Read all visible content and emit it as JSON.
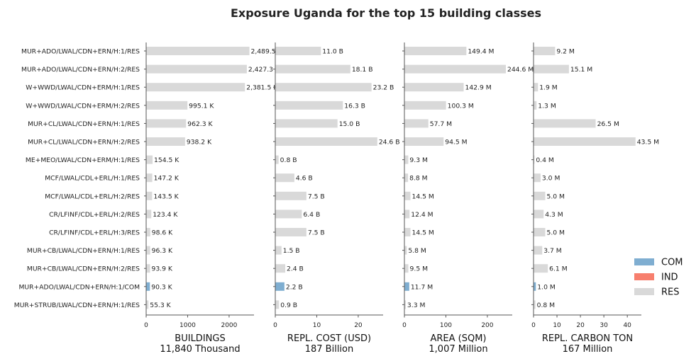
{
  "title": "Exposure Uganda for the top 15 building classes",
  "colors": {
    "COM": "#7faed1",
    "IND": "#f77f6e",
    "RES": "#d9d9d9"
  },
  "legend": {
    "placement": "right",
    "entries": [
      {
        "label": "COM",
        "color": "#7faed1"
      },
      {
        "label": "IND",
        "color": "#f77f6e"
      },
      {
        "label": "RES",
        "color": "#d9d9d9"
      }
    ]
  },
  "chart_data": {
    "type": "bar",
    "orientation": "horizontal",
    "grid": false,
    "categories": [
      "MUR+ADO/LWAL/CDN+ERN/H:1/RES",
      "MUR+ADO/LWAL/CDN+ERN/H:2/RES",
      "W+WWD/LWAL/CDN+ERM/H:1/RES",
      "W+WWD/LWAL/CDN+ERM/H:2/RES",
      "MUR+CL/LWAL/CDN+ERN/H:1/RES",
      "MUR+CL/LWAL/CDN+ERN/H:2/RES",
      "ME+MEO/LWAL/CDN+ERM/H:1/RES",
      "MCF/LWAL/CDL+ERL/H:1/RES",
      "MCF/LWAL/CDL+ERL/H:2/RES",
      "CR/LFINF/CDL+ERL/H:2/RES",
      "CR/LFINF/CDL+ERL/H:3/RES",
      "MUR+CB/LWAL/CDN+ERN/H:1/RES",
      "MUR+CB/LWAL/CDN+ERN/H:2/RES",
      "MUR+ADO/LWAL/CDN+ERN/H:1/COM",
      "MUR+STRUB/LWAL/CDN+ERN/H:1/RES"
    ],
    "occupancy": [
      "RES",
      "RES",
      "RES",
      "RES",
      "RES",
      "RES",
      "RES",
      "RES",
      "RES",
      "RES",
      "RES",
      "RES",
      "RES",
      "COM",
      "RES"
    ],
    "panels": [
      {
        "xlabel": "BUILDINGS",
        "subtitle": "11,840 Thousand",
        "xlim": [
          0,
          2600
        ],
        "xticks": [
          0,
          1000,
          2000
        ],
        "values": [
          2489.5,
          2427.3,
          2381.5,
          995.1,
          962.3,
          938.2,
          154.5,
          147.2,
          143.5,
          123.4,
          98.6,
          96.3,
          93.9,
          90.3,
          55.3
        ],
        "labels": [
          "2,489.5 K",
          "2,427.3 K",
          "2,381.5 K",
          "995.1 K",
          "962.3 K",
          "938.2 K",
          "154.5 K",
          "147.2 K",
          "143.5 K",
          "123.4 K",
          "98.6 K",
          "96.3 K",
          "93.9 K",
          "90.3 K",
          "55.3 K"
        ]
      },
      {
        "xlabel": "REPL. COST (USD)",
        "subtitle": "187 Billion",
        "xlim": [
          0,
          26
        ],
        "xticks": [
          0,
          10,
          20
        ],
        "values": [
          11.0,
          18.1,
          23.2,
          16.3,
          15.0,
          24.6,
          0.8,
          4.6,
          7.5,
          6.4,
          7.5,
          1.5,
          2.4,
          2.2,
          0.9
        ],
        "labels": [
          "11.0 B",
          "18.1 B",
          "23.2 B",
          "16.3 B",
          "15.0 B",
          "24.6 B",
          "0.8 B",
          "4.6 B",
          "7.5 B",
          "6.4 B",
          "7.5 B",
          "1.5 B",
          "2.4 B",
          "2.2 B",
          "0.9 B"
        ]
      },
      {
        "xlabel": "AREA (SQM)",
        "subtitle": "1,007 Million",
        "xlim": [
          0,
          260
        ],
        "xticks": [
          0,
          100,
          200
        ],
        "values": [
          149.4,
          244.6,
          142.9,
          100.3,
          57.7,
          94.5,
          9.3,
          8.8,
          14.5,
          12.4,
          14.5,
          5.8,
          9.5,
          11.7,
          3.3
        ],
        "labels": [
          "149.4 M",
          "244.6 M",
          "142.9 M",
          "100.3 M",
          "57.7 M",
          "94.5 M",
          "9.3 M",
          "8.8 M",
          "14.5 M",
          "12.4 M",
          "14.5 M",
          "5.8 M",
          "9.5 M",
          "11.7 M",
          "3.3 M"
        ]
      },
      {
        "xlabel": "REPL. CARBON TON",
        "subtitle": "167 Million",
        "xlim": [
          0,
          46
        ],
        "xticks": [
          0,
          10,
          20,
          30,
          40
        ],
        "values": [
          9.2,
          15.1,
          1.9,
          1.3,
          26.5,
          43.5,
          0.4,
          3.0,
          5.0,
          4.3,
          5.0,
          3.7,
          6.1,
          1.0,
          0.8
        ],
        "labels": [
          "9.2 M",
          "15.1 M",
          "1.9 M",
          "1.3 M",
          "26.5 M",
          "43.5 M",
          "0.4 M",
          "3.0 M",
          "5.0 M",
          "4.3 M",
          "5.0 M",
          "3.7 M",
          "6.1 M",
          "1.0 M",
          "0.8 M"
        ]
      }
    ]
  }
}
